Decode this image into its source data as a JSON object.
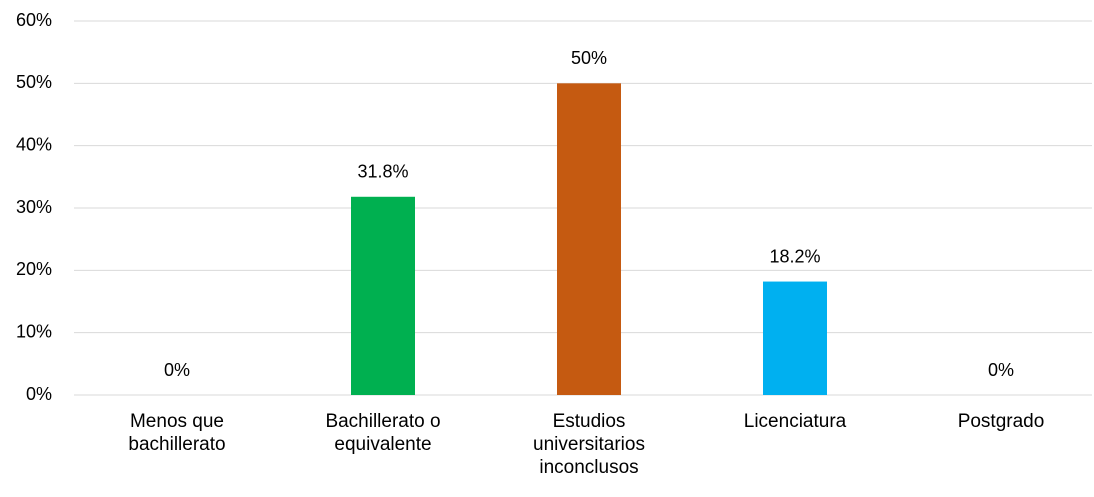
{
  "chart_data": {
    "type": "bar",
    "categories": [
      "Menos que bachillerato",
      "Bachillerato o equivalente",
      "Estudios universitarios inconclusos",
      "Licenciatura",
      "Postgrado"
    ],
    "values": [
      0,
      31.8,
      50,
      18.2,
      0
    ],
    "value_labels": [
      "0%",
      "31.8%",
      "50%",
      "18.2%",
      "0%"
    ],
    "colors": [
      "#4472c4",
      "#00b050",
      "#c55a11",
      "#00b0f0",
      "#4472c4"
    ],
    "ylim": [
      0,
      60
    ],
    "yticks": [
      {
        "value": 0,
        "label": "0%"
      },
      {
        "value": 10,
        "label": "10%"
      },
      {
        "value": 20,
        "label": "20%"
      },
      {
        "value": 30,
        "label": "30%"
      },
      {
        "value": 40,
        "label": "40%"
      },
      {
        "value": 50,
        "label": "50%"
      },
      {
        "value": 60,
        "label": "60%"
      }
    ],
    "grid": true
  }
}
